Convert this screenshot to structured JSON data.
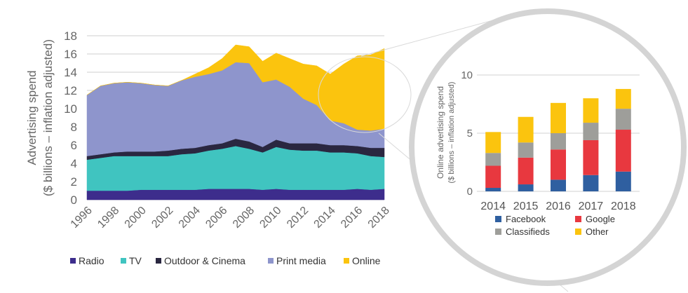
{
  "chart_data": [
    {
      "type": "area",
      "stacked": true,
      "ylabel_line1": "Advertising spend",
      "ylabel_line2": "($ billions – inflation adjusted)",
      "ylim": [
        0,
        18
      ],
      "yticks": [
        0,
        2,
        4,
        6,
        8,
        10,
        12,
        14,
        16,
        18
      ],
      "x": [
        1996,
        1997,
        1998,
        1999,
        2000,
        2001,
        2002,
        2003,
        2004,
        2005,
        2006,
        2007,
        2008,
        2009,
        2010,
        2011,
        2012,
        2013,
        2014,
        2015,
        2016,
        2017,
        2018
      ],
      "xticks": [
        "1996",
        "1998",
        "2000",
        "2002",
        "2004",
        "2006",
        "2008",
        "2010",
        "2012",
        "2014",
        "2016",
        "2018"
      ],
      "grid": true,
      "legend_position": "bottom",
      "series": [
        {
          "name": "Radio",
          "color": "#3d2d8c",
          "values": [
            1.0,
            1.0,
            1.0,
            1.0,
            1.1,
            1.1,
            1.1,
            1.1,
            1.1,
            1.2,
            1.2,
            1.2,
            1.2,
            1.1,
            1.2,
            1.1,
            1.1,
            1.1,
            1.1,
            1.1,
            1.2,
            1.1,
            1.2
          ]
        },
        {
          "name": "TV",
          "color": "#40c4c0",
          "values": [
            3.4,
            3.6,
            3.8,
            3.8,
            3.7,
            3.7,
            3.7,
            3.9,
            4.0,
            4.2,
            4.4,
            4.7,
            4.4,
            4.1,
            4.6,
            4.4,
            4.3,
            4.3,
            4.1,
            4.1,
            3.9,
            3.7,
            3.5
          ]
        },
        {
          "name": "Outdoor & Cinema",
          "color": "#2a2740",
          "values": [
            0.4,
            0.4,
            0.4,
            0.5,
            0.5,
            0.5,
            0.6,
            0.6,
            0.6,
            0.6,
            0.6,
            0.8,
            0.8,
            0.6,
            0.8,
            0.7,
            0.8,
            0.8,
            0.8,
            0.8,
            0.8,
            0.9,
            1.0
          ]
        },
        {
          "name": "Print media",
          "color": "#8e95cc",
          "values": [
            6.7,
            7.5,
            7.6,
            7.6,
            7.5,
            7.3,
            7.1,
            7.5,
            7.8,
            7.8,
            8.0,
            8.4,
            8.6,
            7.1,
            6.6,
            6.2,
            4.9,
            4.2,
            2.7,
            2.4,
            1.8,
            1.9,
            2.1
          ]
        },
        {
          "name": "Online",
          "color": "#fbc40e",
          "values": [
            0.0,
            0.0,
            0.0,
            0.0,
            0.0,
            0.0,
            0.0,
            0.0,
            0.3,
            0.7,
            1.3,
            1.9,
            1.8,
            2.3,
            2.9,
            3.1,
            3.8,
            4.3,
            5.1,
            6.5,
            8.1,
            8.3,
            8.8
          ]
        }
      ]
    },
    {
      "type": "bar",
      "stacked": true,
      "ylabel_line1": "Online advertising spend",
      "ylabel_line2": "($ billions – inflation adjusted)",
      "ylim": [
        0,
        10
      ],
      "yticks": [
        0,
        5,
        10
      ],
      "categories": [
        "2014",
        "2015",
        "2016",
        "2017",
        "2018"
      ],
      "grid": true,
      "legend_position": "bottom",
      "series": [
        {
          "name": "Facebook",
          "color": "#2f5fa0",
          "values": [
            0.3,
            0.6,
            1.0,
            1.4,
            1.7
          ]
        },
        {
          "name": "Google",
          "color": "#e8383f",
          "values": [
            1.9,
            2.3,
            2.6,
            3.0,
            3.6
          ]
        },
        {
          "name": "Classifieds",
          "color": "#9e9e9a",
          "values": [
            1.1,
            1.3,
            1.4,
            1.5,
            1.8
          ]
        },
        {
          "name": "Other",
          "color": "#fbc40e",
          "values": [
            1.8,
            2.2,
            2.6,
            2.1,
            1.7
          ]
        }
      ]
    }
  ]
}
